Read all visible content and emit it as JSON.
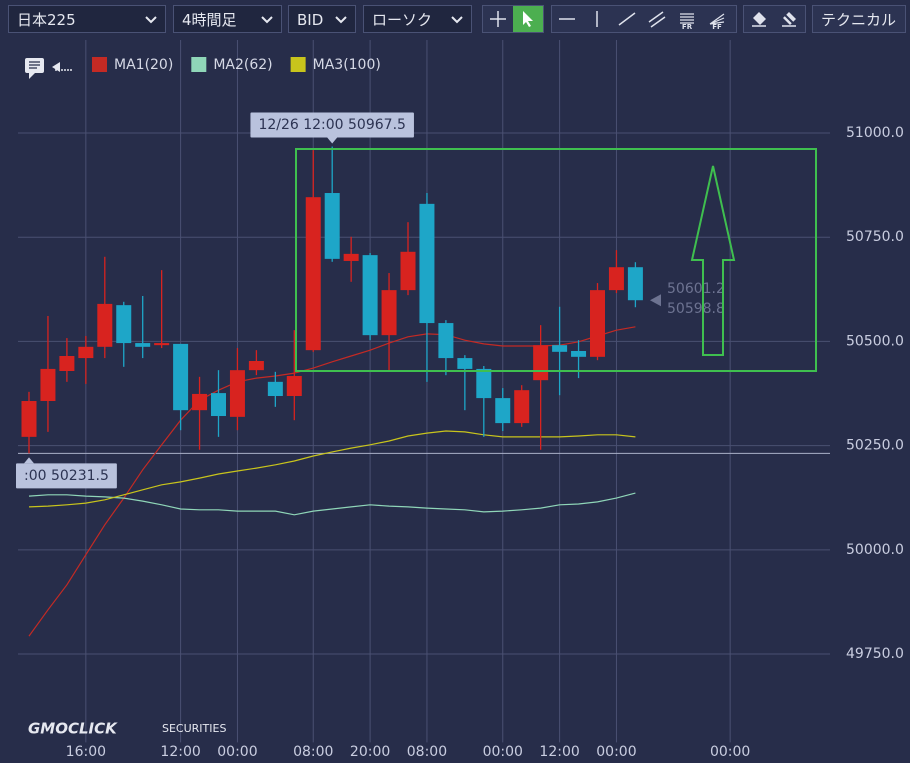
{
  "toolbar": {
    "symbol": "日本225",
    "timeframe": "4時間足",
    "price_side": "BID",
    "chart_style": "ローソク",
    "fr_label": "FR",
    "ff_label": "FF",
    "technical": "テクニカル"
  },
  "watermark": {
    "brand": "GMOCLICK",
    "suffix": "SECURITIES"
  },
  "chart_data": {
    "type": "candlestick",
    "categories": [
      null,
      null,
      null,
      "16:00",
      null,
      null,
      null,
      null,
      "12:00",
      null,
      null,
      "00:00",
      null,
      null,
      null,
      "08:00",
      null,
      null,
      "20:00",
      null,
      null,
      "08:00",
      null,
      null,
      null,
      "00:00",
      null,
      null,
      "12:00",
      null,
      null,
      "00:00",
      null,
      null,
      null,
      null,
      null,
      "00:00"
    ],
    "open": [
      50271,
      50357,
      50429,
      50460,
      50487,
      50587,
      50496,
      50491,
      50494,
      50335,
      50376,
      50319,
      50431,
      50403,
      50369,
      50479,
      50856,
      50693,
      50707,
      50515,
      50623,
      50830,
      50544,
      50460,
      50434,
      50364,
      50304,
      50407,
      50491,
      50477,
      50463,
      50623,
      50678,
      null,
      null,
      null,
      null,
      null
    ],
    "high": [
      50379,
      50561,
      50508,
      50513,
      50703,
      50595,
      50609,
      50671,
      50494,
      50415,
      50431,
      50484,
      50479,
      50427,
      50527,
      50959,
      50967.5,
      50751,
      50712,
      50664,
      50786,
      50856,
      50551,
      50467,
      50441,
      50388,
      50395,
      50539,
      50583,
      50503,
      50640,
      50719,
      50690,
      null,
      null,
      null,
      null,
      null
    ],
    "low": [
      50231.5,
      50283,
      50403,
      50398,
      50460,
      50439,
      50460,
      50484,
      50287,
      50240,
      50271,
      50287,
      50419,
      50343,
      50311,
      50475,
      50691,
      50643,
      50503,
      50431,
      50611,
      50403,
      50419,
      50335,
      50271,
      50285,
      50295,
      50240,
      50371,
      50412,
      50455,
      50616,
      50582,
      null,
      null,
      null,
      null,
      null
    ],
    "close": [
      50357,
      50434,
      50465,
      50487,
      50590,
      50496,
      50487,
      50496,
      50335,
      50374,
      50321,
      50431,
      50453,
      50369,
      50417,
      50846,
      50698,
      50710,
      50515,
      50623,
      50715,
      50544,
      50460,
      50434,
      50364,
      50304,
      50383,
      50491,
      50475,
      50463,
      50623,
      50678,
      50598.8,
      null,
      null,
      null,
      null,
      null
    ],
    "up_color": "#d8231f",
    "down_color": "#1ea6c8",
    "series": [
      {
        "name": "MA1(20)",
        "color": "#c42a24",
        "values": [
          49793,
          49856,
          49916,
          49988,
          50060,
          50124,
          50192,
          50252,
          50311,
          50359,
          50383,
          50403,
          50412,
          50417,
          50424,
          50436,
          50451,
          50465,
          50479,
          50496,
          50511,
          50518,
          50516,
          50503,
          50494,
          50489,
          50489,
          50489,
          50491,
          50499,
          50513,
          50527,
          50535,
          null,
          null,
          null,
          null,
          null
        ]
      },
      {
        "name": "MA2(62)",
        "color": "#8fd6b8",
        "values": [
          50129,
          50132,
          50132,
          50129,
          50127,
          50124,
          50117,
          50108,
          50098,
          50096,
          50096,
          50093,
          50093,
          50093,
          50084,
          50093,
          50098,
          50103,
          50108,
          50105,
          50103,
          50100,
          50098,
          50096,
          50091,
          50093,
          50096,
          50100,
          50108,
          50110,
          50115,
          50124,
          50136,
          null,
          null,
          null,
          null,
          null
        ]
      },
      {
        "name": "MA3(100)",
        "color": "#c8c41c",
        "values": [
          50103,
          50105,
          50108,
          50112,
          50120,
          50132,
          50144,
          50156,
          50163,
          50172,
          50182,
          50189,
          50196,
          50204,
          50213,
          50225,
          50235,
          50244,
          50252,
          50261,
          50273,
          50280,
          50285,
          50283,
          50276,
          50271,
          50271,
          50271,
          50271,
          50273,
          50276,
          50276,
          50271,
          null,
          null,
          null,
          null,
          null
        ]
      }
    ],
    "ylim": [
      49550,
      51225
    ],
    "yticks": [
      {
        "value": 49750,
        "label": "49750.0"
      },
      {
        "value": 50000,
        "label": "50000.0"
      },
      {
        "value": 50250,
        "label": "50250.0"
      },
      {
        "value": 50500,
        "label": "50500.0"
      },
      {
        "value": 50750,
        "label": "50750.0"
      },
      {
        "value": 51000,
        "label": "51000.0"
      }
    ],
    "grid": true,
    "annotations": [
      {
        "text": "12/26 12:00 50967.5",
        "index": 16,
        "value": 50967.5,
        "side": "above"
      },
      {
        "text": ":00 50231.5",
        "index": 0,
        "value": 50231.5,
        "side": "below"
      }
    ],
    "price_labels": [
      {
        "value": 50601.2,
        "label": "50601.2"
      },
      {
        "value": 50598.8,
        "label": "50598.8"
      }
    ]
  }
}
